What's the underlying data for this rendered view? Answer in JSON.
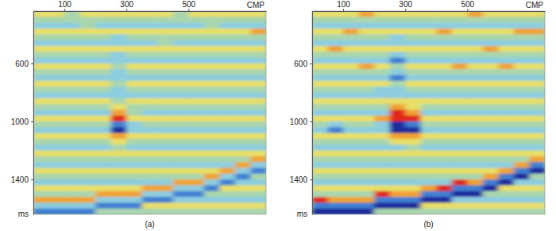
{
  "chart_data": [
    {
      "type": "heatmap",
      "title": "(a)",
      "x_label": "CMP",
      "y_label": "ms",
      "xlim": [
        0,
        750
      ],
      "xticks": [
        100,
        300,
        500
      ],
      "ylim": [
        240,
        1640
      ],
      "yticks": [
        600,
        1000,
        1400
      ],
      "zlim": [
        -3,
        3
      ],
      "x": [
        25,
        75,
        125,
        175,
        225,
        275,
        325,
        375,
        425,
        475,
        525,
        575,
        625,
        675,
        725
      ],
      "y": [
        260,
        300,
        340,
        380,
        420,
        460,
        500,
        540,
        580,
        620,
        660,
        700,
        740,
        780,
        820,
        860,
        900,
        940,
        980,
        1020,
        1060,
        1100,
        1140,
        1180,
        1220,
        1260,
        1300,
        1340,
        1380,
        1420,
        1460,
        1500,
        1540,
        1580,
        1620
      ],
      "z": [
        [
          1,
          1,
          0,
          1,
          1,
          1,
          1,
          1,
          1,
          0,
          1,
          1,
          1,
          1,
          1
        ],
        [
          0,
          0,
          0,
          0,
          0,
          0,
          0,
          0,
          0,
          0,
          0,
          0,
          0,
          0,
          0
        ],
        [
          -1,
          -1,
          -1,
          0,
          -1,
          -1,
          -1,
          -1,
          -1,
          -1,
          -1,
          0,
          -1,
          -1,
          -1
        ],
        [
          1,
          1,
          1,
          1,
          1,
          1,
          1,
          1,
          1,
          1,
          1,
          1,
          1,
          1,
          2
        ],
        [
          0,
          0,
          0,
          0,
          0,
          -1,
          0,
          0,
          0,
          0,
          0,
          0,
          0,
          0,
          0
        ],
        [
          -1,
          -1,
          -1,
          -1,
          -1,
          -1,
          -1,
          -1,
          0,
          -1,
          -1,
          -1,
          -1,
          -1,
          -1
        ],
        [
          1,
          1,
          1,
          1,
          1,
          1,
          1,
          1,
          1,
          1,
          1,
          1,
          1,
          1,
          1
        ],
        [
          0,
          0,
          0,
          0,
          0,
          -1,
          0,
          0,
          0,
          0,
          0,
          0,
          0,
          0,
          0
        ],
        [
          -1,
          -1,
          -1,
          -1,
          -1,
          -1,
          -1,
          -1,
          -1,
          -1,
          -1,
          -1,
          -1,
          -1,
          -1
        ],
        [
          1,
          1,
          1,
          1,
          1,
          0,
          1,
          1,
          1,
          1,
          1,
          1,
          1,
          1,
          1
        ],
        [
          0,
          0,
          0,
          0,
          0,
          -1,
          0,
          0,
          0,
          0,
          0,
          0,
          0,
          0,
          0
        ],
        [
          -1,
          -1,
          -1,
          -1,
          -1,
          -1,
          -1,
          -1,
          -1,
          -1,
          -1,
          -1,
          -1,
          -1,
          -1
        ],
        [
          1,
          1,
          1,
          1,
          1,
          0,
          1,
          1,
          1,
          1,
          1,
          1,
          1,
          1,
          1
        ],
        [
          0,
          0,
          0,
          0,
          0,
          -1,
          0,
          0,
          0,
          0,
          0,
          0,
          0,
          0,
          0
        ],
        [
          -1,
          -1,
          -1,
          -1,
          -1,
          -1,
          -1,
          -1,
          -1,
          -1,
          -1,
          -1,
          -1,
          -1,
          -1
        ],
        [
          1,
          1,
          1,
          1,
          1,
          0,
          1,
          1,
          1,
          1,
          1,
          1,
          1,
          1,
          1
        ],
        [
          0,
          0,
          0,
          0,
          0,
          1,
          0,
          0,
          0,
          0,
          0,
          0,
          0,
          0,
          0
        ],
        [
          -1,
          -1,
          -1,
          -1,
          -1,
          2,
          0,
          -1,
          -1,
          -1,
          -1,
          -1,
          -1,
          -1,
          -1
        ],
        [
          1,
          1,
          1,
          1,
          1,
          3,
          1,
          1,
          1,
          1,
          1,
          1,
          1,
          1,
          1
        ],
        [
          0,
          0,
          0,
          0,
          0,
          -2,
          -1,
          0,
          0,
          0,
          0,
          0,
          0,
          0,
          0
        ],
        [
          -1,
          -1,
          -1,
          -1,
          -1,
          -3,
          -1,
          -1,
          -1,
          -1,
          -1,
          -1,
          -1,
          -1,
          -1
        ],
        [
          1,
          1,
          1,
          1,
          1,
          2,
          1,
          1,
          1,
          1,
          1,
          1,
          1,
          1,
          1
        ],
        [
          0,
          0,
          0,
          0,
          0,
          1,
          0,
          0,
          0,
          0,
          0,
          0,
          0,
          0,
          0
        ],
        [
          -1,
          -1,
          -1,
          -1,
          -1,
          0,
          -1,
          -1,
          -1,
          -1,
          -1,
          -1,
          -1,
          -1,
          -1
        ],
        [
          1,
          1,
          1,
          1,
          1,
          1,
          1,
          1,
          1,
          1,
          1,
          1,
          1,
          1,
          1
        ],
        [
          0,
          0,
          0,
          0,
          0,
          0,
          0,
          0,
          0,
          0,
          0,
          0,
          0,
          0,
          2
        ],
        [
          -1,
          -1,
          -1,
          -1,
          -1,
          -1,
          -1,
          -1,
          -1,
          -1,
          -1,
          -1,
          -1,
          2,
          -1
        ],
        [
          1,
          1,
          1,
          1,
          1,
          1,
          1,
          1,
          1,
          1,
          1,
          1,
          2,
          -1,
          -2
        ],
        [
          0,
          0,
          0,
          0,
          0,
          0,
          0,
          0,
          0,
          0,
          0,
          2,
          -1,
          -2,
          0
        ],
        [
          -1,
          -1,
          -1,
          -1,
          -1,
          -1,
          -1,
          -1,
          -1,
          2,
          2,
          -1,
          -2,
          -1,
          -1
        ],
        [
          1,
          1,
          1,
          1,
          1,
          1,
          1,
          2,
          2,
          -1,
          -1,
          -2,
          1,
          1,
          1
        ],
        [
          0,
          0,
          0,
          0,
          2,
          2,
          2,
          -1,
          -1,
          -2,
          -2,
          0,
          0,
          0,
          0
        ],
        [
          2,
          2,
          2,
          2,
          -1,
          -1,
          -1,
          -2,
          -2,
          -1,
          -1,
          -1,
          -1,
          -1,
          -1
        ],
        [
          -1,
          -1,
          -1,
          -1,
          -2,
          -2,
          -2,
          1,
          1,
          1,
          1,
          1,
          1,
          1,
          1
        ],
        [
          -2,
          -2,
          -2,
          -2,
          0,
          0,
          0,
          0,
          0,
          0,
          0,
          0,
          0,
          0,
          0
        ]
      ]
    },
    {
      "type": "heatmap",
      "title": "(b)",
      "x_label": "CMP",
      "y_label": "ms",
      "xlim": [
        0,
        750
      ],
      "xticks": [
        100,
        300,
        500
      ],
      "ylim": [
        240,
        1640
      ],
      "yticks": [
        600,
        1000,
        1400
      ],
      "zlim": [
        -3,
        3
      ],
      "x": [
        25,
        75,
        125,
        175,
        225,
        275,
        325,
        375,
        425,
        475,
        525,
        575,
        625,
        675,
        725
      ],
      "y": [
        260,
        300,
        340,
        380,
        420,
        460,
        500,
        540,
        580,
        620,
        660,
        700,
        740,
        780,
        820,
        860,
        900,
        940,
        980,
        1020,
        1060,
        1100,
        1140,
        1180,
        1220,
        1260,
        1300,
        1340,
        1380,
        1420,
        1460,
        1500,
        1540,
        1580,
        1620
      ],
      "z": [
        [
          1,
          1,
          1,
          2,
          1,
          1,
          1,
          1,
          1,
          1,
          2,
          1,
          1,
          1,
          1
        ],
        [
          0,
          0,
          0,
          0,
          0,
          0,
          0,
          0,
          0,
          0,
          0,
          0,
          0,
          0,
          0
        ],
        [
          -1,
          -1,
          -1,
          -1,
          -1,
          -1,
          -1,
          -1,
          -1,
          -1,
          -1,
          -1,
          -1,
          -1,
          -1
        ],
        [
          1,
          1,
          2,
          1,
          1,
          1,
          1,
          1,
          2,
          1,
          1,
          1,
          1,
          2,
          2
        ],
        [
          0,
          0,
          0,
          0,
          0,
          -1,
          0,
          0,
          0,
          0,
          0,
          0,
          0,
          0,
          0
        ],
        [
          -1,
          -1,
          -1,
          -1,
          -1,
          -1,
          -1,
          -1,
          -1,
          -1,
          -1,
          -1,
          -1,
          -1,
          -1
        ],
        [
          1,
          2,
          1,
          1,
          1,
          1,
          1,
          1,
          1,
          1,
          1,
          2,
          1,
          1,
          1
        ],
        [
          0,
          0,
          0,
          0,
          0,
          -1,
          0,
          0,
          0,
          0,
          0,
          0,
          0,
          0,
          0
        ],
        [
          -1,
          -1,
          -1,
          -1,
          -1,
          -2,
          -1,
          -1,
          -1,
          -1,
          -1,
          -1,
          -1,
          -1,
          -1
        ],
        [
          1,
          1,
          1,
          2,
          1,
          0,
          1,
          1,
          1,
          2,
          1,
          1,
          2,
          1,
          1
        ],
        [
          0,
          0,
          0,
          0,
          0,
          -1,
          0,
          0,
          0,
          0,
          0,
          0,
          0,
          0,
          0
        ],
        [
          -1,
          -1,
          -1,
          -1,
          -1,
          -2,
          -1,
          -1,
          -1,
          -1,
          -1,
          -1,
          -1,
          -1,
          -1
        ],
        [
          1,
          1,
          1,
          1,
          1,
          0,
          1,
          1,
          1,
          1,
          1,
          1,
          1,
          1,
          1
        ],
        [
          0,
          0,
          0,
          0,
          -1,
          -1,
          0,
          0,
          0,
          0,
          0,
          0,
          0,
          0,
          0
        ],
        [
          -1,
          -1,
          -1,
          -1,
          -1,
          -1,
          -1,
          -1,
          -1,
          -1,
          -1,
          -1,
          -1,
          -1,
          -1
        ],
        [
          1,
          1,
          1,
          1,
          1,
          1,
          1,
          1,
          1,
          1,
          1,
          1,
          1,
          1,
          1
        ],
        [
          0,
          0,
          0,
          0,
          0,
          2,
          1,
          0,
          0,
          0,
          0,
          0,
          0,
          0,
          0
        ],
        [
          -1,
          -1,
          -1,
          -1,
          -1,
          3,
          2,
          -1,
          -1,
          -1,
          -1,
          -1,
          -1,
          -1,
          -1
        ],
        [
          1,
          1,
          1,
          1,
          2,
          3,
          3,
          1,
          1,
          1,
          1,
          1,
          1,
          1,
          1
        ],
        [
          0,
          -1,
          0,
          0,
          -1,
          -3,
          -2,
          0,
          0,
          0,
          0,
          0,
          0,
          0,
          0
        ],
        [
          -1,
          -2,
          -1,
          -1,
          -1,
          -3,
          -3,
          -1,
          -1,
          -1,
          -1,
          -1,
          -1,
          -1,
          -1
        ],
        [
          1,
          1,
          1,
          1,
          1,
          2,
          2,
          1,
          1,
          1,
          1,
          1,
          1,
          1,
          1
        ],
        [
          0,
          0,
          0,
          0,
          0,
          1,
          1,
          0,
          0,
          0,
          0,
          0,
          0,
          0,
          0
        ],
        [
          -1,
          -1,
          -1,
          -1,
          -1,
          -1,
          0,
          -1,
          -1,
          -1,
          -1,
          -1,
          -1,
          -1,
          -1
        ],
        [
          1,
          1,
          1,
          1,
          1,
          1,
          1,
          1,
          1,
          1,
          1,
          1,
          1,
          1,
          1
        ],
        [
          0,
          0,
          0,
          0,
          0,
          0,
          0,
          0,
          0,
          0,
          0,
          0,
          0,
          0,
          2
        ],
        [
          -1,
          -1,
          -1,
          -1,
          -1,
          -1,
          -1,
          -1,
          -1,
          -1,
          -1,
          -1,
          -1,
          2,
          -2
        ],
        [
          1,
          1,
          1,
          1,
          1,
          1,
          1,
          1,
          1,
          1,
          1,
          1,
          2,
          -2,
          -3
        ],
        [
          0,
          0,
          0,
          0,
          0,
          0,
          0,
          0,
          0,
          0,
          0,
          2,
          -2,
          -3,
          0
        ],
        [
          -1,
          -1,
          -1,
          -1,
          -1,
          -1,
          -1,
          -1,
          -1,
          3,
          2,
          -2,
          -3,
          -1,
          -1
        ],
        [
          1,
          1,
          1,
          1,
          1,
          1,
          1,
          2,
          3,
          -2,
          -2,
          -3,
          1,
          1,
          1
        ],
        [
          0,
          0,
          0,
          0,
          3,
          2,
          2,
          -2,
          -2,
          -3,
          -3,
          0,
          0,
          0,
          0
        ],
        [
          3,
          2,
          2,
          2,
          -2,
          -2,
          -2,
          -3,
          -3,
          -1,
          -1,
          -1,
          -1,
          -1,
          -1
        ],
        [
          -2,
          -2,
          -2,
          -2,
          -3,
          -3,
          -3,
          1,
          1,
          1,
          1,
          1,
          1,
          1,
          1
        ],
        [
          -3,
          -3,
          -3,
          -3,
          0,
          0,
          0,
          0,
          0,
          0,
          0,
          0,
          0,
          0,
          0
        ]
      ]
    }
  ]
}
